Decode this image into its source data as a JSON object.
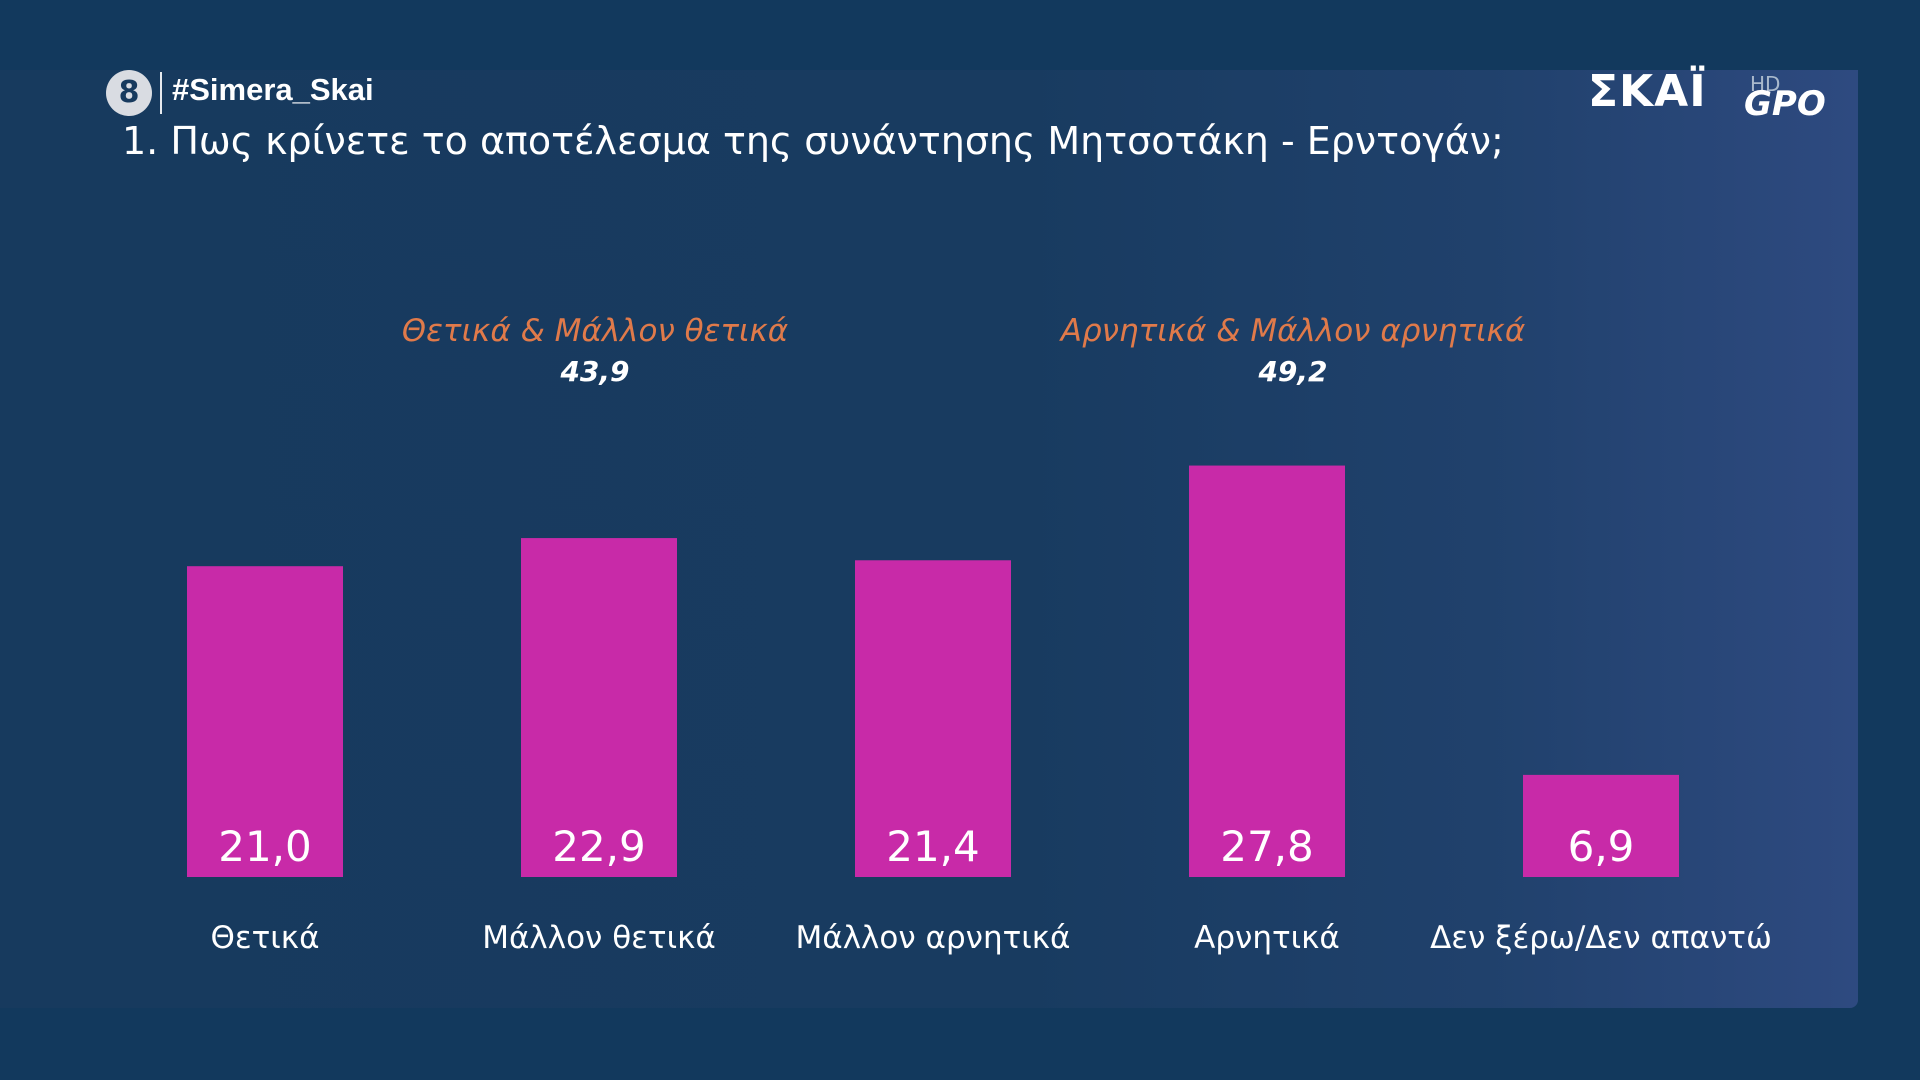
{
  "header": {
    "channel_number": "8",
    "hashtag": "#Simera_Skai",
    "question": "1. Πως κρίνετε το αποτέλεσμα της συνάντησης Μητσοτάκη - Ερντογάν;"
  },
  "logo": {
    "text": "ΣΚΑΪ",
    "sub": "HD",
    "tag": "GPO"
  },
  "groups": [
    {
      "label": "Θετικά & Μάλλον θετικά",
      "value": "43,9"
    },
    {
      "label": "Αρνητικά & Μάλλον αρνητικά",
      "value": "49,2"
    }
  ],
  "colors": {
    "bar": "#c82aa8",
    "group_label": "#e07a4a",
    "background": "#173a5e"
  },
  "chart_data": {
    "type": "bar",
    "categories": [
      "Θετικά",
      "Μάλλον θετικά",
      "Μάλλον αρνητικά",
      "Αρνητικά",
      "Δεν ξέρω/Δεν απαντώ"
    ],
    "values": [
      21.0,
      22.9,
      21.4,
      27.8,
      6.9
    ],
    "value_labels": [
      "21,0",
      "22,9",
      "21,4",
      "27,8",
      "6,9"
    ],
    "ylim": [
      0,
      30
    ],
    "grid": false,
    "legend": "none"
  }
}
